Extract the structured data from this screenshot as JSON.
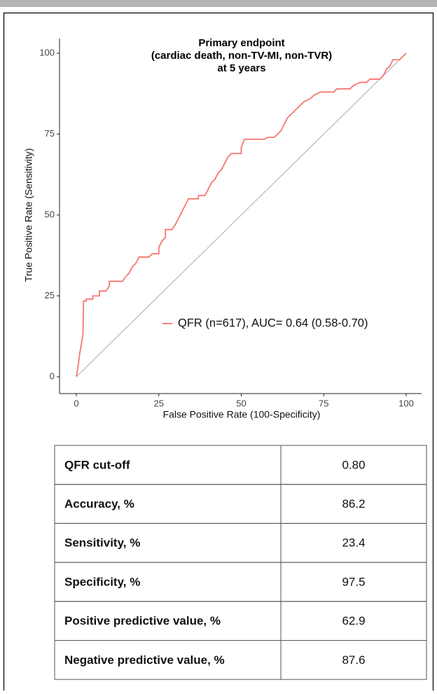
{
  "chart_data": {
    "type": "line",
    "title": [
      "Primary endpoint",
      "(cardiac death, non-TV-MI, non-TVR)",
      "at 5 years"
    ],
    "xlabel": "False Positive Rate (100-Specificity)",
    "ylabel": "True Positive Rate (Sensitivity)",
    "xlim": [
      0,
      100
    ],
    "ylim": [
      0,
      100
    ],
    "xticks": [
      0,
      25,
      50,
      75,
      100
    ],
    "yticks": [
      0,
      25,
      50,
      75,
      100
    ],
    "grid": false,
    "legend": "right",
    "x": [
      0,
      0.5,
      1,
      1.5,
      2,
      2.2,
      3,
      3,
      5,
      5,
      7,
      7,
      9,
      10,
      10,
      14,
      15,
      16,
      17,
      18,
      19,
      22,
      23,
      25,
      25,
      26,
      27,
      27,
      29,
      30,
      31,
      32,
      33,
      34,
      37,
      37,
      39,
      40,
      41,
      42,
      43,
      44,
      45,
      46,
      47,
      50,
      50,
      51,
      57,
      58,
      60,
      61,
      62,
      63,
      64,
      65,
      66,
      67,
      69,
      71,
      72,
      74,
      78,
      79,
      83,
      84,
      86,
      88,
      89,
      92,
      93,
      94,
      95,
      96,
      98,
      99,
      100
    ],
    "series": [
      {
        "name": "QFR (n=617), AUC= 0.64 (0.58-0.70)",
        "color": "#F8766D",
        "values": [
          0,
          3,
          7,
          10,
          13,
          23.4,
          23.4,
          24,
          24,
          25,
          25,
          26.5,
          26.5,
          28,
          29.5,
          29.5,
          31,
          32,
          34,
          35,
          37,
          37,
          38,
          38,
          40,
          42,
          43,
          45.5,
          45.5,
          47,
          49,
          51,
          53,
          55,
          55,
          56,
          56,
          58,
          60,
          61,
          63,
          64,
          66,
          68,
          69,
          69,
          71,
          73.4,
          73.4,
          74,
          74,
          75,
          76,
          78,
          80,
          81,
          82,
          83,
          85,
          86,
          87,
          88,
          88,
          89,
          89,
          90,
          91,
          91,
          92,
          92,
          93,
          95,
          96,
          98,
          98,
          99,
          100
        ]
      }
    ]
  },
  "table": {
    "rows": [
      [
        "QFR cut-off",
        "0.80"
      ],
      [
        "Accuracy, %",
        "86.2"
      ],
      [
        "Sensitivity, %",
        "23.4"
      ],
      [
        "Specificity, %",
        "97.5"
      ],
      [
        "Positive predictive value, %",
        "62.9"
      ],
      [
        "Negative predictive value, %",
        "87.6"
      ]
    ]
  }
}
